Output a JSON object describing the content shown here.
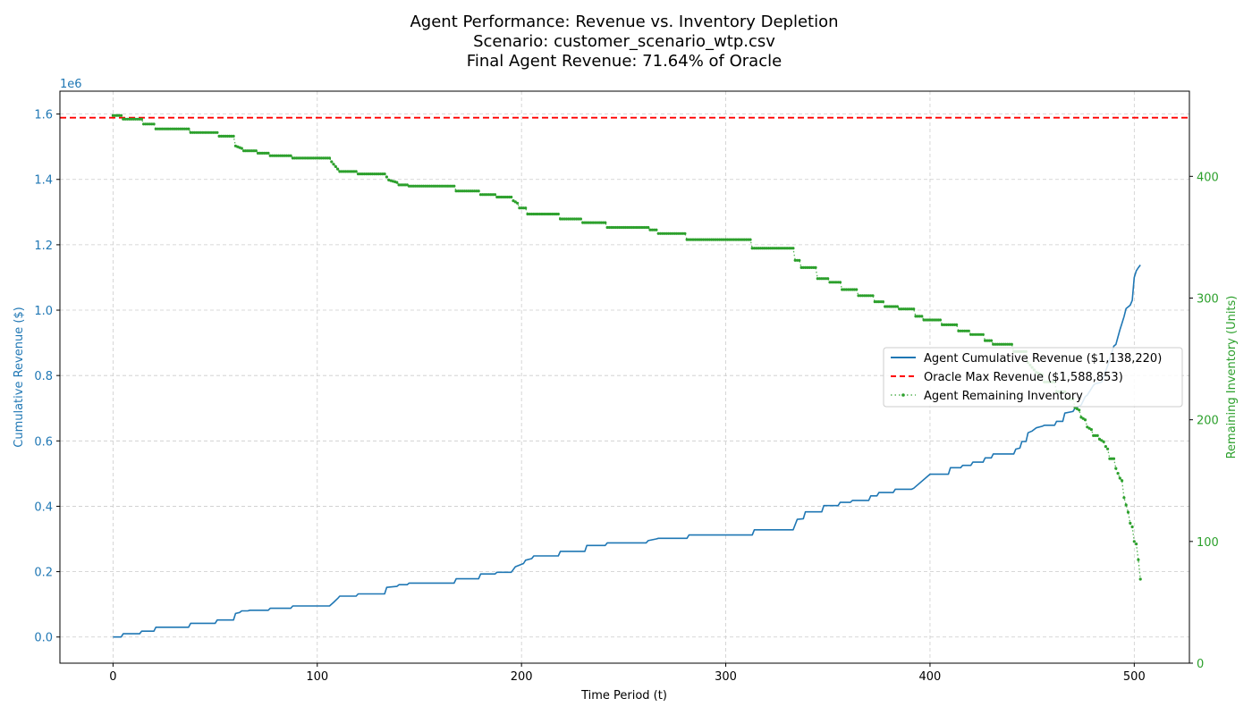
{
  "chart_data": {
    "type": "line",
    "title_lines": [
      "Agent Performance: Revenue vs. Inventory Depletion",
      "Scenario: customer_scenario_wtp.csv",
      "Final Agent Revenue: 71.64% of Oracle"
    ],
    "xlabel": "Time Period (t)",
    "ylabel_left": "Cumulative Revenue ($)",
    "ylabel_right": "Remaining Inventory (Units)",
    "offset_text_left": "1e6",
    "xlim": [
      -26,
      527
    ],
    "ylim_left": [
      -80000,
      1670000
    ],
    "ylim_right": [
      0,
      470
    ],
    "x_ticks": [
      0,
      100,
      200,
      300,
      400,
      500
    ],
    "x_tick_labels": [
      "0",
      "100",
      "200",
      "300",
      "400",
      "500"
    ],
    "left_ticks": [
      0,
      200000,
      400000,
      600000,
      800000,
      1000000,
      1200000,
      1400000,
      1600000
    ],
    "left_tick_labels": [
      "0.0",
      "0.2",
      "0.4",
      "0.6",
      "0.8",
      "1.0",
      "1.2",
      "1.4",
      "1.6"
    ],
    "right_ticks": [
      0,
      100,
      200,
      300,
      400
    ],
    "right_tick_labels": [
      "0",
      "100",
      "200",
      "300",
      "400"
    ],
    "grid": true,
    "legend_position": "center-right",
    "colors": {
      "revenue": "#1f77b4",
      "oracle": "#ff0000",
      "inventory": "#2ca02c",
      "grid": "#cccccc"
    },
    "series": [
      {
        "name": "Agent Cumulative Revenue ($1,138,220)",
        "axis": "left",
        "style": "solid",
        "x": [
          0,
          4,
          5,
          13,
          14,
          20,
          21,
          37,
          38,
          50,
          51,
          59,
          60,
          62,
          63,
          66,
          67,
          76,
          77,
          87,
          88,
          106,
          108,
          110,
          111,
          119,
          120,
          133,
          134,
          139,
          140,
          144,
          145,
          167,
          168,
          179,
          180,
          187,
          188,
          195,
          197,
          201,
          202,
          205,
          206,
          218,
          219,
          231,
          232,
          241,
          242,
          261,
          262,
          266,
          267,
          281,
          282,
          313,
          314,
          333,
          335,
          338,
          339,
          347,
          348,
          355,
          356,
          361,
          362,
          370,
          371,
          374,
          375,
          382,
          383,
          391,
          392,
          400,
          401,
          409,
          410,
          415,
          416,
          420,
          421,
          426,
          427,
          430,
          431,
          441,
          442,
          444,
          445,
          447,
          448,
          450,
          452,
          455,
          456,
          461,
          462,
          465,
          466,
          470,
          471,
          474,
          476,
          477,
          479,
          480,
          481,
          483,
          484,
          487,
          488,
          490,
          491,
          493,
          494,
          495,
          496,
          497,
          498,
          499,
          500,
          501,
          502,
          503
        ],
        "values": [
          0,
          0,
          10000,
          10000,
          18000,
          18000,
          30000,
          30000,
          42000,
          42000,
          52000,
          52000,
          72000,
          75000,
          80000,
          80000,
          82000,
          82000,
          88000,
          88000,
          95000,
          95000,
          106000,
          118000,
          125000,
          125000,
          132000,
          132000,
          152000,
          155000,
          160000,
          160000,
          165000,
          165000,
          178000,
          178000,
          193000,
          193000,
          198000,
          198000,
          215000,
          225000,
          235000,
          240000,
          248000,
          248000,
          262000,
          262000,
          280000,
          280000,
          288000,
          288000,
          295000,
          300000,
          302000,
          302000,
          312000,
          312000,
          328000,
          328000,
          360000,
          362000,
          383000,
          383000,
          402000,
          402000,
          412000,
          412000,
          418000,
          418000,
          432000,
          432000,
          442000,
          442000,
          452000,
          452000,
          455000,
          498000,
          498000,
          498000,
          518000,
          518000,
          525000,
          525000,
          535000,
          535000,
          548000,
          548000,
          560000,
          560000,
          575000,
          578000,
          598000,
          598000,
          625000,
          630000,
          640000,
          645000,
          648000,
          648000,
          660000,
          660000,
          685000,
          690000,
          700000,
          710000,
          735000,
          740000,
          760000,
          770000,
          775000,
          778000,
          780000,
          830000,
          850000,
          890000,
          895000,
          940000,
          960000,
          980000,
          1005000,
          1010000,
          1015000,
          1030000,
          1100000,
          1120000,
          1130000,
          1138220
        ]
      },
      {
        "name": "Oracle Max Revenue ($1,588,853)",
        "axis": "left",
        "style": "dashed",
        "constant": 1588853
      },
      {
        "name": "Agent Remaining Inventory",
        "axis": "right",
        "style": "dotted-markers",
        "x": [
          0,
          4,
          5,
          14,
          15,
          20,
          21,
          37,
          38,
          51,
          52,
          59,
          60,
          63,
          64,
          70,
          71,
          76,
          77,
          87,
          88,
          106,
          107,
          109,
          111,
          119,
          120,
          133,
          135,
          139,
          140,
          144,
          145,
          167,
          168,
          179,
          180,
          187,
          188,
          195,
          196,
          198,
          199,
          202,
          203,
          205,
          206,
          218,
          219,
          229,
          230,
          241,
          242,
          262,
          263,
          266,
          267,
          280,
          281,
          312,
          313,
          333,
          334,
          336,
          337,
          344,
          345,
          350,
          351,
          356,
          357,
          364,
          365,
          372,
          373,
          377,
          378,
          384,
          385,
          392,
          393,
          396,
          397,
          405,
          406,
          413,
          414,
          419,
          420,
          426,
          427,
          430,
          431,
          440,
          441,
          447,
          448,
          450,
          452,
          455,
          456,
          461,
          462,
          466,
          467,
          470,
          471,
          473,
          474,
          476,
          477,
          479,
          480,
          482,
          483,
          485,
          486,
          487,
          488,
          490,
          491,
          493,
          494,
          495,
          496,
          497,
          498,
          499,
          500,
          501,
          502,
          503
        ],
        "values": [
          450,
          450,
          447,
          447,
          443,
          443,
          439,
          439,
          436,
          436,
          433,
          433,
          425,
          423,
          421,
          421,
          419,
          419,
          417,
          417,
          415,
          415,
          412,
          408,
          404,
          404,
          402,
          402,
          397,
          395,
          393,
          393,
          392,
          392,
          388,
          388,
          385,
          385,
          383,
          383,
          380,
          378,
          374,
          374,
          369,
          369,
          369,
          369,
          365,
          365,
          362,
          362,
          358,
          358,
          356,
          356,
          353,
          353,
          348,
          348,
          341,
          341,
          331,
          331,
          325,
          325,
          316,
          316,
          313,
          313,
          307,
          307,
          302,
          302,
          297,
          297,
          293,
          293,
          291,
          291,
          285,
          285,
          282,
          282,
          278,
          278,
          273,
          273,
          270,
          270,
          265,
          265,
          262,
          262,
          256,
          256,
          247,
          243,
          239,
          237,
          231,
          231,
          223,
          223,
          217,
          217,
          210,
          208,
          202,
          200,
          194,
          192,
          187,
          187,
          184,
          182,
          178,
          176,
          168,
          168,
          160,
          152,
          150,
          136,
          130,
          124,
          115,
          112,
          100,
          98,
          85,
          69
        ]
      }
    ]
  }
}
